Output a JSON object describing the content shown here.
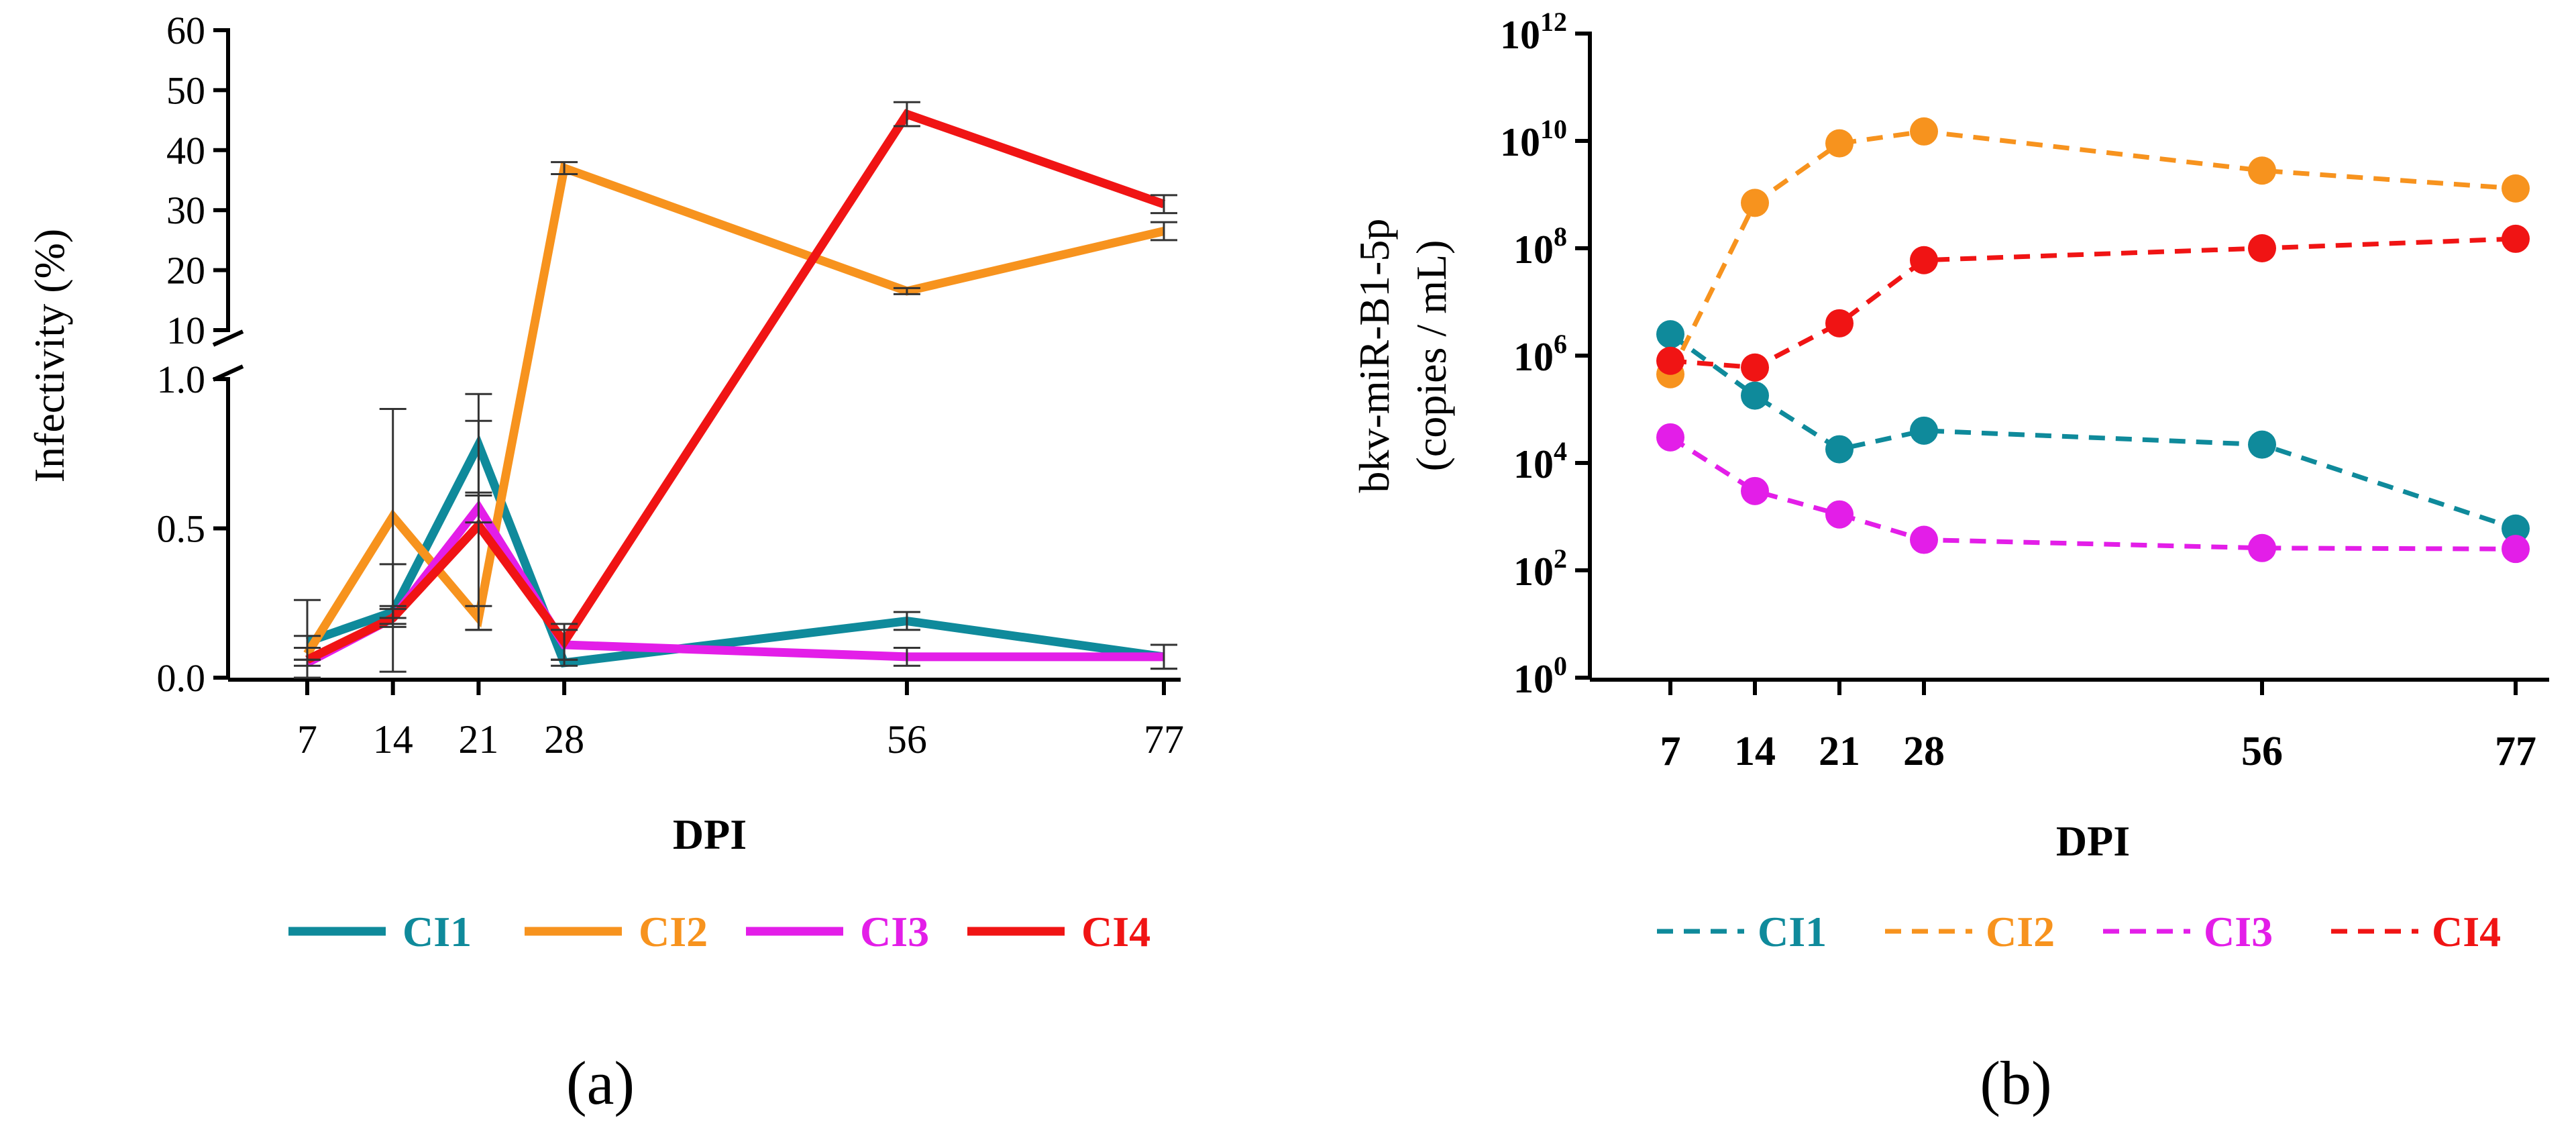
{
  "panels": {
    "a": {
      "caption": "(a)"
    },
    "b": {
      "caption": "(b)"
    }
  },
  "colors": {
    "CI1": "#0f8a9b",
    "CI2": "#f7931e",
    "CI3": "#e31ee8",
    "CI4": "#f01414"
  },
  "chart_data": [
    {
      "panel": "a",
      "type": "line",
      "ylabel": "Infectivity (%)",
      "xlabel": "DPI",
      "x": [
        7,
        14,
        21,
        28,
        56,
        77
      ],
      "xtick_labels": [
        "7",
        "14",
        "21",
        "28",
        "56",
        "77"
      ],
      "y_axis_break": true,
      "lower_segment": {
        "ylim": [
          0,
          1.0
        ],
        "ticks": [
          0.0,
          0.5,
          1.0
        ],
        "tick_labels": [
          "0.0",
          "0.5",
          "1.0"
        ]
      },
      "upper_segment": {
        "ylim": [
          10,
          60
        ],
        "ticks": [
          10,
          20,
          30,
          40,
          50,
          60
        ],
        "tick_labels": [
          "10",
          "20",
          "30",
          "40",
          "50",
          "60"
        ]
      },
      "grid": false,
      "legend_position": "bottom",
      "series": [
        {
          "name": "CI1",
          "values": [
            0.12,
            0.22,
            0.78,
            0.05,
            0.19,
            0.07
          ],
          "errors": [
            0.02,
            0.02,
            0.17,
            0.01,
            0.03,
            0.04
          ]
        },
        {
          "name": "CI2",
          "values": [
            0.08,
            0.54,
            0.2,
            37,
            16.5,
            26.5
          ],
          "errors": [
            0.02,
            0.36,
            0.04,
            1.0,
            0.5,
            1.5
          ]
        },
        {
          "name": "CI3",
          "values": [
            0.05,
            0.2,
            0.57,
            0.11,
            0.07,
            0.07
          ],
          "errors": [
            0.01,
            0.03,
            0.05,
            0.05,
            0.03,
            0.04
          ]
        },
        {
          "name": "CI4",
          "values": [
            0.06,
            0.2,
            0.51,
            0.12,
            46,
            31
          ],
          "errors": [
            0.2,
            0.18,
            0.35,
            0.06,
            2.0,
            1.5
          ]
        }
      ]
    },
    {
      "panel": "b",
      "type": "line",
      "ylabel_line1": "bkv-miR-B1-5p",
      "ylabel_line2": "(copies / mL)",
      "xlabel": "DPI",
      "x": [
        7,
        14,
        21,
        28,
        56,
        77
      ],
      "xtick_labels": [
        "7",
        "14",
        "21",
        "28",
        "56",
        "77"
      ],
      "yscale": "log",
      "ylim": [
        1,
        1000000000000.0
      ],
      "ytick_bases": [
        "10",
        "10",
        "10",
        "10",
        "10",
        "10",
        "10"
      ],
      "ytick_exponents": [
        "0",
        "2",
        "4",
        "6",
        "8",
        "10",
        "12"
      ],
      "grid": false,
      "line_style": "dashed",
      "markers": "circle",
      "legend_position": "bottom",
      "series": [
        {
          "name": "CI1",
          "values": [
            2500000,
            180000,
            18000,
            40000,
            22000,
            600
          ]
        },
        {
          "name": "CI2",
          "values": [
            450000,
            700000000,
            9000000000,
            15000000000,
            2800000000,
            1300000000
          ]
        },
        {
          "name": "CI3",
          "values": [
            30000,
            3000,
            1100,
            370,
            260,
            250
          ]
        },
        {
          "name": "CI4",
          "values": [
            800000,
            600000,
            4000000,
            60000000,
            100000000,
            150000000
          ]
        }
      ]
    }
  ]
}
